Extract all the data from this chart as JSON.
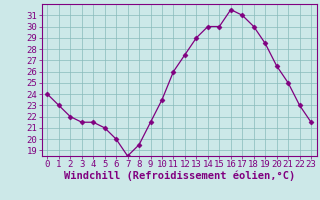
{
  "x": [
    0,
    1,
    2,
    3,
    4,
    5,
    6,
    7,
    8,
    9,
    10,
    11,
    12,
    13,
    14,
    15,
    16,
    17,
    18,
    19,
    20,
    21,
    22,
    23
  ],
  "y": [
    24,
    23,
    22,
    21.5,
    21.5,
    21,
    20,
    18.5,
    19.5,
    21.5,
    23.5,
    26,
    27.5,
    29,
    30,
    30,
    31.5,
    31,
    30,
    28.5,
    26.5,
    25,
    23,
    21.5
  ],
  "line_color": "#800080",
  "marker": "D",
  "marker_size": 2.5,
  "bg_color": "#cce8e8",
  "grid_color": "#88bbbb",
  "xlabel": "Windchill (Refroidissement éolien,°C)",
  "ylabel_ticks": [
    19,
    20,
    21,
    22,
    23,
    24,
    25,
    26,
    27,
    28,
    29,
    30,
    31
  ],
  "xtick_labels": [
    "0",
    "1",
    "2",
    "3",
    "4",
    "5",
    "6",
    "7",
    "8",
    "9",
    "10",
    "11",
    "12",
    "13",
    "14",
    "15",
    "16",
    "17",
    "18",
    "19",
    "20",
    "21",
    "22",
    "23"
  ],
  "ylim": [
    18.5,
    32.0
  ],
  "xlim": [
    -0.5,
    23.5
  ],
  "tick_fontsize": 6.5,
  "xlabel_fontsize": 7.5
}
